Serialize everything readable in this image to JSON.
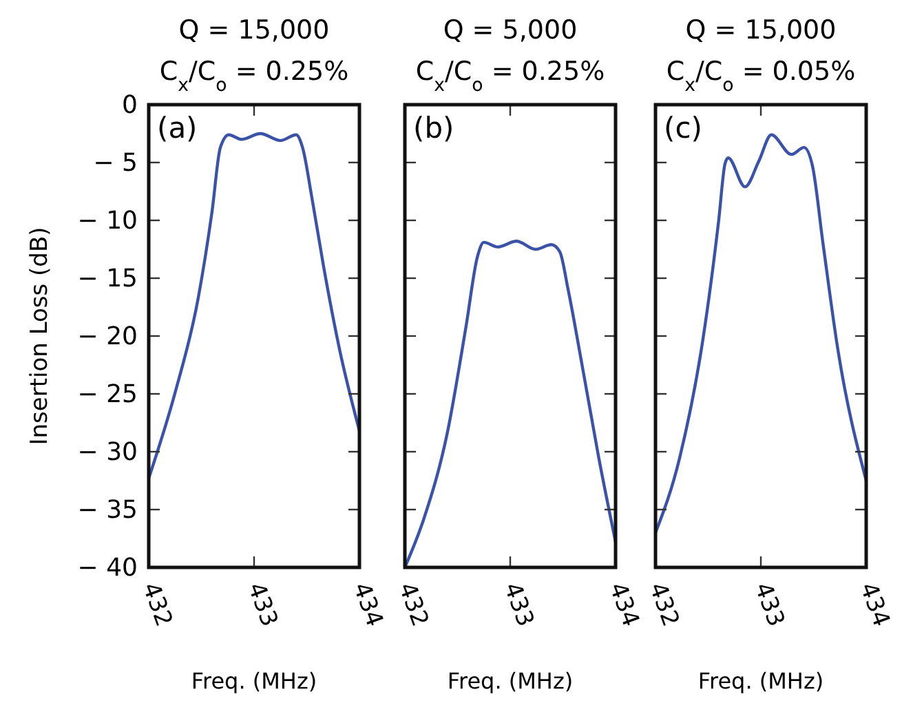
{
  "chart_data": [
    {
      "type": "line",
      "title": "Q = 15,000",
      "subtitle": "C$_{x}$/C$_{o}$ = 0.25%",
      "xlabel": "Freq. (MHz)",
      "ylabel": "Insertion Loss (dB)",
      "annotations": [
        "(a)"
      ],
      "xlim": [
        432,
        434
      ],
      "xticks": [
        432,
        433,
        434
      ],
      "ylim": [
        -40,
        0
      ],
      "yticks": [
        0,
        -5,
        -10,
        -15,
        -20,
        -25,
        -30,
        -35,
        -40
      ],
      "series": [
        {
          "color": "#3a52a8",
          "x": [
            432,
            432.25,
            432.47,
            432.6,
            432.68,
            432.76,
            432.88,
            433.06,
            433.25,
            433.4,
            433.46,
            433.55,
            433.66,
            433.81,
            434
          ],
          "values": [
            -32.3,
            -24.9,
            -16.7,
            -9.3,
            -3.7,
            -2.6,
            -3,
            -2.5,
            -3.1,
            -2.6,
            -3.7,
            -8.1,
            -14,
            -21.1,
            -28.2
          ]
        }
      ]
    },
    {
      "type": "line",
      "title": "Q = 5,000",
      "subtitle": "C$_{x}$/C$_{o}$ = 0.25%",
      "xlabel": "Freq. (MHz)",
      "annotations": [
        "(b)"
      ],
      "xlim": [
        432,
        434
      ],
      "xticks": [
        432,
        433,
        434
      ],
      "ylim": [
        -40,
        0
      ],
      "yticks": [
        0,
        -5,
        -10,
        -15,
        -20,
        -25,
        -30,
        -35,
        -40
      ],
      "tick_labels": "x",
      "series": [
        {
          "color": "#3a52a8",
          "x": [
            432,
            432.18,
            432.4,
            432.58,
            432.69,
            432.75,
            432.88,
            433.06,
            433.24,
            433.39,
            433.47,
            433.55,
            433.68,
            433.84,
            434
          ],
          "values": [
            -40,
            -35.8,
            -28.5,
            -19.2,
            -13.1,
            -11.9,
            -12.3,
            -11.8,
            -12.5,
            -12.1,
            -12.7,
            -16,
            -22.4,
            -30.5,
            -37.8
          ]
        }
      ]
    },
    {
      "type": "line",
      "title": "Q = 15,000",
      "subtitle": "C$_{x}$/C$_{o}$ = 0.05%",
      "xlabel": "Freq. (MHz)",
      "annotations": [
        "(c)"
      ],
      "xlim": [
        432,
        434
      ],
      "xticks": [
        432,
        433,
        434
      ],
      "ylim": [
        -40,
        0
      ],
      "yticks": [
        0,
        -5,
        -10,
        -15,
        -20,
        -25,
        -30,
        -35,
        -40
      ],
      "tick_labels": "x",
      "series": [
        {
          "color": "#3a52a8",
          "x": [
            432,
            432.23,
            432.45,
            432.6,
            432.66,
            432.69,
            432.85,
            432.98,
            433.1,
            433.29,
            433.41,
            433.49,
            433.59,
            433.73,
            434
          ],
          "values": [
            -37,
            -30.5,
            -20.3,
            -10,
            -5.1,
            -4.6,
            -7.1,
            -4.9,
            -2.6,
            -4.3,
            -3.7,
            -5.3,
            -12,
            -21.1,
            -32.5
          ]
        }
      ]
    }
  ]
}
